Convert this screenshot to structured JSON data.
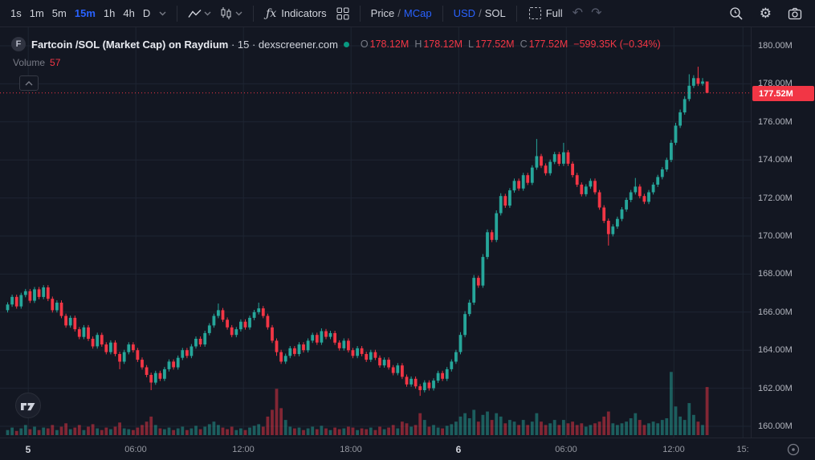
{
  "toolbar": {
    "timeframes": [
      "1s",
      "1m",
      "5m",
      "15m",
      "1h",
      "4h",
      "D"
    ],
    "active_timeframe": "15m",
    "fx_glyph": "ƒx",
    "indicators_label": "Indicators",
    "price_label": "Price",
    "divider": "/",
    "mcap_label": "MCap",
    "usd_label": "USD",
    "sol_label": "SOL",
    "full_label": "Full",
    "undo_glyph": "↶",
    "redo_glyph": "↷",
    "gear_glyph": "⚙"
  },
  "legend": {
    "symbol_badge": "F",
    "title": "Fartcoin /SOL (Market Cap) on Raydium",
    "title_suffix": " · 15 · dexscreener.com",
    "ohlc": {
      "o_label": "O",
      "o_value": "178.12M",
      "h_label": "H",
      "h_value": "178.12M",
      "l_label": "L",
      "l_value": "177.52M",
      "c_label": "C",
      "c_value": "177.52M",
      "change": "−599.35K (−0.34%)"
    },
    "volume_label": "Volume",
    "volume_value": "57"
  },
  "price_axis": {
    "labels": [
      "180.00M",
      "178.00M",
      "176.00M",
      "174.00M",
      "172.00M",
      "170.00M",
      "168.00M",
      "166.00M",
      "164.00M",
      "162.00M",
      "160.00M"
    ],
    "last_price_label": "177.52M"
  },
  "colors": {
    "background": "#131722",
    "grid": "#1e2532",
    "up": "#26a69a",
    "down": "#f23645",
    "volume_up": "#26a69a80",
    "volume_down": "#f2364580",
    "accent": "#2962ff",
    "axis_text": "#b2b5be",
    "muted_text": "#787b86",
    "status_dot": "#089981"
  },
  "chart_data": {
    "type": "candlestick",
    "title": "Fartcoin /SOL (Market Cap) on Raydium",
    "interval": "15",
    "source": "dexscreener.com",
    "units": "M (market cap, USD)",
    "price_max": 180.97,
    "price_min": 159.41,
    "last_price": 177.52,
    "x_offset": 9.5,
    "x_step": 5.584,
    "candle_width": 3.8,
    "vol_scale": 1.05,
    "legend_position": "top-left",
    "grid": true,
    "price_ticks": [
      180,
      178,
      176,
      174,
      172,
      170,
      168,
      166,
      164,
      162,
      160
    ],
    "time_ticks": [
      {
        "index": 4.6,
        "label": "5",
        "major": true
      },
      {
        "index": 28.6,
        "label": "06:00",
        "major": false
      },
      {
        "index": 52.6,
        "label": "12:00",
        "major": false
      },
      {
        "index": 76.6,
        "label": "18:00",
        "major": false
      },
      {
        "index": 100.6,
        "label": "6",
        "major": true
      },
      {
        "index": 124.6,
        "label": "06:00",
        "major": false
      },
      {
        "index": 148.6,
        "label": "12:00",
        "major": false
      },
      {
        "index": 164,
        "label": "15:",
        "major": false
      }
    ],
    "candles": [
      [
        166.1,
        166.52,
        165.98,
        166.4,
        6
      ],
      [
        166.4,
        166.92,
        166.28,
        166.8,
        9
      ],
      [
        166.8,
        166.92,
        166.18,
        166.3,
        5
      ],
      [
        166.3,
        167.02,
        166.18,
        166.9,
        8
      ],
      [
        166.9,
        167.22,
        166.78,
        167.1,
        12
      ],
      [
        167.1,
        167.22,
        166.48,
        166.6,
        7
      ],
      [
        166.6,
        167.32,
        166.48,
        167.2,
        10
      ],
      [
        167.2,
        167.32,
        166.68,
        166.8,
        6
      ],
      [
        166.8,
        167.42,
        166.68,
        167.3,
        9
      ],
      [
        167.3,
        167.42,
        166.58,
        166.7,
        8
      ],
      [
        166.7,
        166.82,
        165.98,
        166.1,
        12
      ],
      [
        166.1,
        166.62,
        165.98,
        166.5,
        6
      ],
      [
        166.5,
        166.62,
        165.68,
        165.8,
        10
      ],
      [
        165.8,
        165.92,
        165.18,
        165.3,
        14
      ],
      [
        165.3,
        165.82,
        165.18,
        165.7,
        7
      ],
      [
        165.7,
        165.82,
        164.98,
        165.1,
        9
      ],
      [
        165.1,
        165.22,
        164.58,
        164.7,
        12
      ],
      [
        164.7,
        165.32,
        164.58,
        165.2,
        6
      ],
      [
        165.2,
        165.32,
        164.48,
        164.6,
        10
      ],
      [
        164.6,
        164.72,
        164.08,
        164.2,
        13
      ],
      [
        164.2,
        164.92,
        164.08,
        164.8,
        8
      ],
      [
        164.8,
        164.92,
        164.18,
        164.3,
        6
      ],
      [
        164.3,
        164.42,
        163.78,
        163.9,
        9
      ],
      [
        163.9,
        164.52,
        163.78,
        164.4,
        7
      ],
      [
        164.4,
        164.52,
        163.68,
        163.8,
        10
      ],
      [
        163.8,
        163.92,
        163.0,
        163.4,
        15
      ],
      [
        163.4,
        164.02,
        163.28,
        163.9,
        8
      ],
      [
        163.9,
        164.42,
        163.78,
        164.3,
        7
      ],
      [
        164.3,
        164.42,
        163.88,
        164.0,
        6
      ],
      [
        164.0,
        164.12,
        163.38,
        163.5,
        9
      ],
      [
        163.5,
        163.62,
        162.98,
        163.1,
        12
      ],
      [
        163.1,
        163.22,
        162.58,
        162.7,
        16
      ],
      [
        162.7,
        162.82,
        161.9,
        162.3,
        22
      ],
      [
        162.3,
        162.92,
        162.18,
        162.8,
        12
      ],
      [
        162.8,
        162.92,
        162.38,
        162.5,
        8
      ],
      [
        162.5,
        163.12,
        162.38,
        163.0,
        7
      ],
      [
        163.0,
        163.52,
        162.88,
        163.4,
        9
      ],
      [
        163.4,
        163.52,
        162.98,
        163.1,
        6
      ],
      [
        163.1,
        163.72,
        162.98,
        163.6,
        8
      ],
      [
        163.6,
        164.12,
        163.48,
        164.0,
        10
      ],
      [
        164.0,
        164.12,
        163.58,
        163.7,
        6
      ],
      [
        163.7,
        164.32,
        163.58,
        164.2,
        8
      ],
      [
        164.2,
        164.72,
        164.08,
        164.6,
        11
      ],
      [
        164.6,
        164.72,
        164.18,
        164.3,
        7
      ],
      [
        164.3,
        165.02,
        164.18,
        164.9,
        10
      ],
      [
        164.9,
        165.42,
        164.78,
        165.3,
        13
      ],
      [
        165.3,
        165.92,
        165.18,
        165.8,
        16
      ],
      [
        165.8,
        166.45,
        165.68,
        166.1,
        12
      ],
      [
        166.1,
        166.22,
        165.48,
        165.6,
        9
      ],
      [
        165.6,
        165.72,
        165.08,
        165.2,
        7
      ],
      [
        165.2,
        165.32,
        164.68,
        164.8,
        10
      ],
      [
        164.8,
        165.22,
        164.68,
        165.1,
        6
      ],
      [
        165.1,
        165.62,
        164.98,
        165.5,
        8
      ],
      [
        165.5,
        165.62,
        165.08,
        165.2,
        6
      ],
      [
        165.2,
        165.82,
        165.08,
        165.7,
        9
      ],
      [
        165.7,
        166.12,
        165.58,
        166.0,
        11
      ],
      [
        166.0,
        166.5,
        165.88,
        166.2,
        13
      ],
      [
        166.2,
        166.32,
        165.68,
        165.8,
        10
      ],
      [
        165.8,
        165.92,
        165.08,
        165.2,
        22
      ],
      [
        165.2,
        165.32,
        164.38,
        164.5,
        30
      ],
      [
        164.5,
        164.62,
        163.7,
        163.9,
        55
      ],
      [
        163.9,
        164.02,
        163.28,
        163.4,
        32
      ],
      [
        163.4,
        163.82,
        163.28,
        163.7,
        18
      ],
      [
        163.7,
        164.22,
        163.58,
        164.1,
        10
      ],
      [
        164.1,
        164.22,
        163.68,
        163.8,
        8
      ],
      [
        163.8,
        164.42,
        163.68,
        164.3,
        9
      ],
      [
        164.3,
        164.42,
        163.88,
        164.0,
        6
      ],
      [
        164.0,
        164.62,
        163.88,
        164.5,
        8
      ],
      [
        164.5,
        164.92,
        164.38,
        164.8,
        10
      ],
      [
        164.8,
        164.92,
        164.28,
        164.4,
        7
      ],
      [
        164.4,
        165.15,
        164.28,
        165.0,
        11
      ],
      [
        165.0,
        165.12,
        164.58,
        164.7,
        8
      ],
      [
        164.7,
        165.02,
        164.58,
        164.9,
        6
      ],
      [
        164.9,
        165.02,
        164.28,
        164.4,
        9
      ],
      [
        164.4,
        164.52,
        163.98,
        164.1,
        7
      ],
      [
        164.1,
        164.62,
        163.98,
        164.5,
        8
      ],
      [
        164.5,
        164.62,
        163.88,
        164.0,
        10
      ],
      [
        164.0,
        164.12,
        163.58,
        163.7,
        9
      ],
      [
        163.7,
        164.22,
        163.58,
        164.1,
        6
      ],
      [
        164.1,
        164.22,
        163.68,
        163.8,
        8
      ],
      [
        163.8,
        163.92,
        163.38,
        163.5,
        7
      ],
      [
        163.5,
        164.02,
        163.38,
        163.9,
        9
      ],
      [
        163.9,
        164.02,
        163.48,
        163.6,
        6
      ],
      [
        163.6,
        163.72,
        163.08,
        163.2,
        10
      ],
      [
        163.2,
        163.62,
        163.08,
        163.5,
        7
      ],
      [
        163.5,
        163.62,
        162.98,
        163.1,
        9
      ],
      [
        163.1,
        163.22,
        162.68,
        162.8,
        12
      ],
      [
        162.8,
        163.32,
        162.68,
        163.2,
        8
      ],
      [
        163.2,
        163.32,
        162.48,
        162.6,
        16
      ],
      [
        162.6,
        162.72,
        162.08,
        162.2,
        14
      ],
      [
        162.2,
        162.62,
        162.08,
        162.5,
        10
      ],
      [
        162.5,
        162.62,
        161.98,
        162.1,
        12
      ],
      [
        162.1,
        162.22,
        161.6,
        161.9,
        26
      ],
      [
        161.9,
        162.42,
        161.78,
        162.3,
        18
      ],
      [
        162.3,
        162.42,
        161.88,
        162.0,
        10
      ],
      [
        162.0,
        162.52,
        161.88,
        162.4,
        12
      ],
      [
        162.4,
        162.92,
        162.28,
        162.8,
        9
      ],
      [
        162.8,
        162.92,
        162.38,
        162.5,
        8
      ],
      [
        162.5,
        163.12,
        162.38,
        163.0,
        11
      ],
      [
        163.0,
        163.52,
        162.88,
        163.4,
        13
      ],
      [
        163.4,
        164.02,
        163.28,
        163.9,
        16
      ],
      [
        163.9,
        164.95,
        163.78,
        164.8,
        22
      ],
      [
        164.8,
        166.05,
        164.68,
        165.9,
        26
      ],
      [
        165.9,
        166.65,
        165.78,
        166.5,
        20
      ],
      [
        166.5,
        167.95,
        166.38,
        167.8,
        30
      ],
      [
        167.8,
        167.92,
        167.28,
        167.4,
        16
      ],
      [
        167.4,
        169.05,
        167.28,
        168.9,
        24
      ],
      [
        168.9,
        170.35,
        168.78,
        170.2,
        28
      ],
      [
        170.2,
        170.32,
        169.68,
        169.8,
        18
      ],
      [
        169.8,
        171.35,
        169.68,
        171.2,
        26
      ],
      [
        171.2,
        172.25,
        171.08,
        172.1,
        22
      ],
      [
        172.1,
        172.22,
        171.48,
        171.6,
        14
      ],
      [
        171.6,
        172.52,
        171.48,
        172.4,
        18
      ],
      [
        172.4,
        173.02,
        172.28,
        172.9,
        16
      ],
      [
        172.9,
        173.02,
        172.38,
        172.5,
        12
      ],
      [
        172.5,
        173.32,
        172.38,
        173.2,
        18
      ],
      [
        173.2,
        173.32,
        172.68,
        172.8,
        12
      ],
      [
        172.8,
        173.72,
        172.68,
        173.6,
        16
      ],
      [
        173.6,
        175.1,
        173.48,
        174.2,
        26
      ],
      [
        174.2,
        174.32,
        173.58,
        173.7,
        16
      ],
      [
        173.7,
        173.82,
        173.18,
        173.3,
        12
      ],
      [
        173.3,
        174.02,
        173.18,
        173.9,
        14
      ],
      [
        173.9,
        174.42,
        173.78,
        174.3,
        18
      ],
      [
        174.3,
        174.42,
        173.68,
        173.8,
        12
      ],
      [
        173.8,
        174.9,
        173.68,
        174.4,
        18
      ],
      [
        174.4,
        174.52,
        173.68,
        173.8,
        14
      ],
      [
        173.8,
        173.92,
        173.08,
        173.2,
        16
      ],
      [
        173.2,
        173.32,
        172.58,
        172.7,
        12
      ],
      [
        172.7,
        172.82,
        172.08,
        172.2,
        14
      ],
      [
        172.2,
        172.72,
        172.08,
        172.6,
        10
      ],
      [
        172.6,
        173.02,
        172.48,
        172.9,
        12
      ],
      [
        172.9,
        173.02,
        172.18,
        172.3,
        14
      ],
      [
        172.3,
        172.42,
        171.38,
        171.5,
        16
      ],
      [
        171.5,
        171.62,
        170.68,
        170.8,
        22
      ],
      [
        170.8,
        170.92,
        169.5,
        170.1,
        28
      ],
      [
        170.1,
        170.62,
        169.98,
        170.5,
        14
      ],
      [
        170.5,
        171.02,
        170.38,
        170.9,
        12
      ],
      [
        170.9,
        171.52,
        170.78,
        171.4,
        14
      ],
      [
        171.4,
        172.02,
        171.28,
        171.9,
        16
      ],
      [
        171.9,
        172.42,
        171.78,
        172.3,
        20
      ],
      [
        172.3,
        173.05,
        172.18,
        172.6,
        26
      ],
      [
        172.6,
        172.72,
        171.98,
        172.1,
        18
      ],
      [
        172.1,
        172.22,
        171.68,
        171.8,
        12
      ],
      [
        171.8,
        172.42,
        171.68,
        172.3,
        14
      ],
      [
        172.3,
        172.82,
        172.18,
        172.7,
        16
      ],
      [
        172.7,
        173.22,
        172.58,
        173.1,
        14
      ],
      [
        173.1,
        173.62,
        172.98,
        173.5,
        18
      ],
      [
        173.5,
        174.12,
        173.38,
        174.0,
        20
      ],
      [
        174.0,
        175.05,
        173.88,
        174.9,
        75
      ],
      [
        174.9,
        175.95,
        174.78,
        175.8,
        34
      ],
      [
        175.8,
        176.65,
        175.68,
        176.5,
        22
      ],
      [
        176.5,
        177.35,
        176.38,
        177.2,
        18
      ],
      [
        177.2,
        178.5,
        177.08,
        177.9,
        38
      ],
      [
        177.9,
        178.45,
        177.78,
        178.3,
        24
      ],
      [
        178.3,
        178.9,
        177.88,
        178.0,
        16
      ],
      [
        178.0,
        178.3,
        177.9,
        178.12,
        12
      ],
      [
        178.12,
        178.12,
        177.52,
        177.52,
        57
      ]
    ]
  }
}
